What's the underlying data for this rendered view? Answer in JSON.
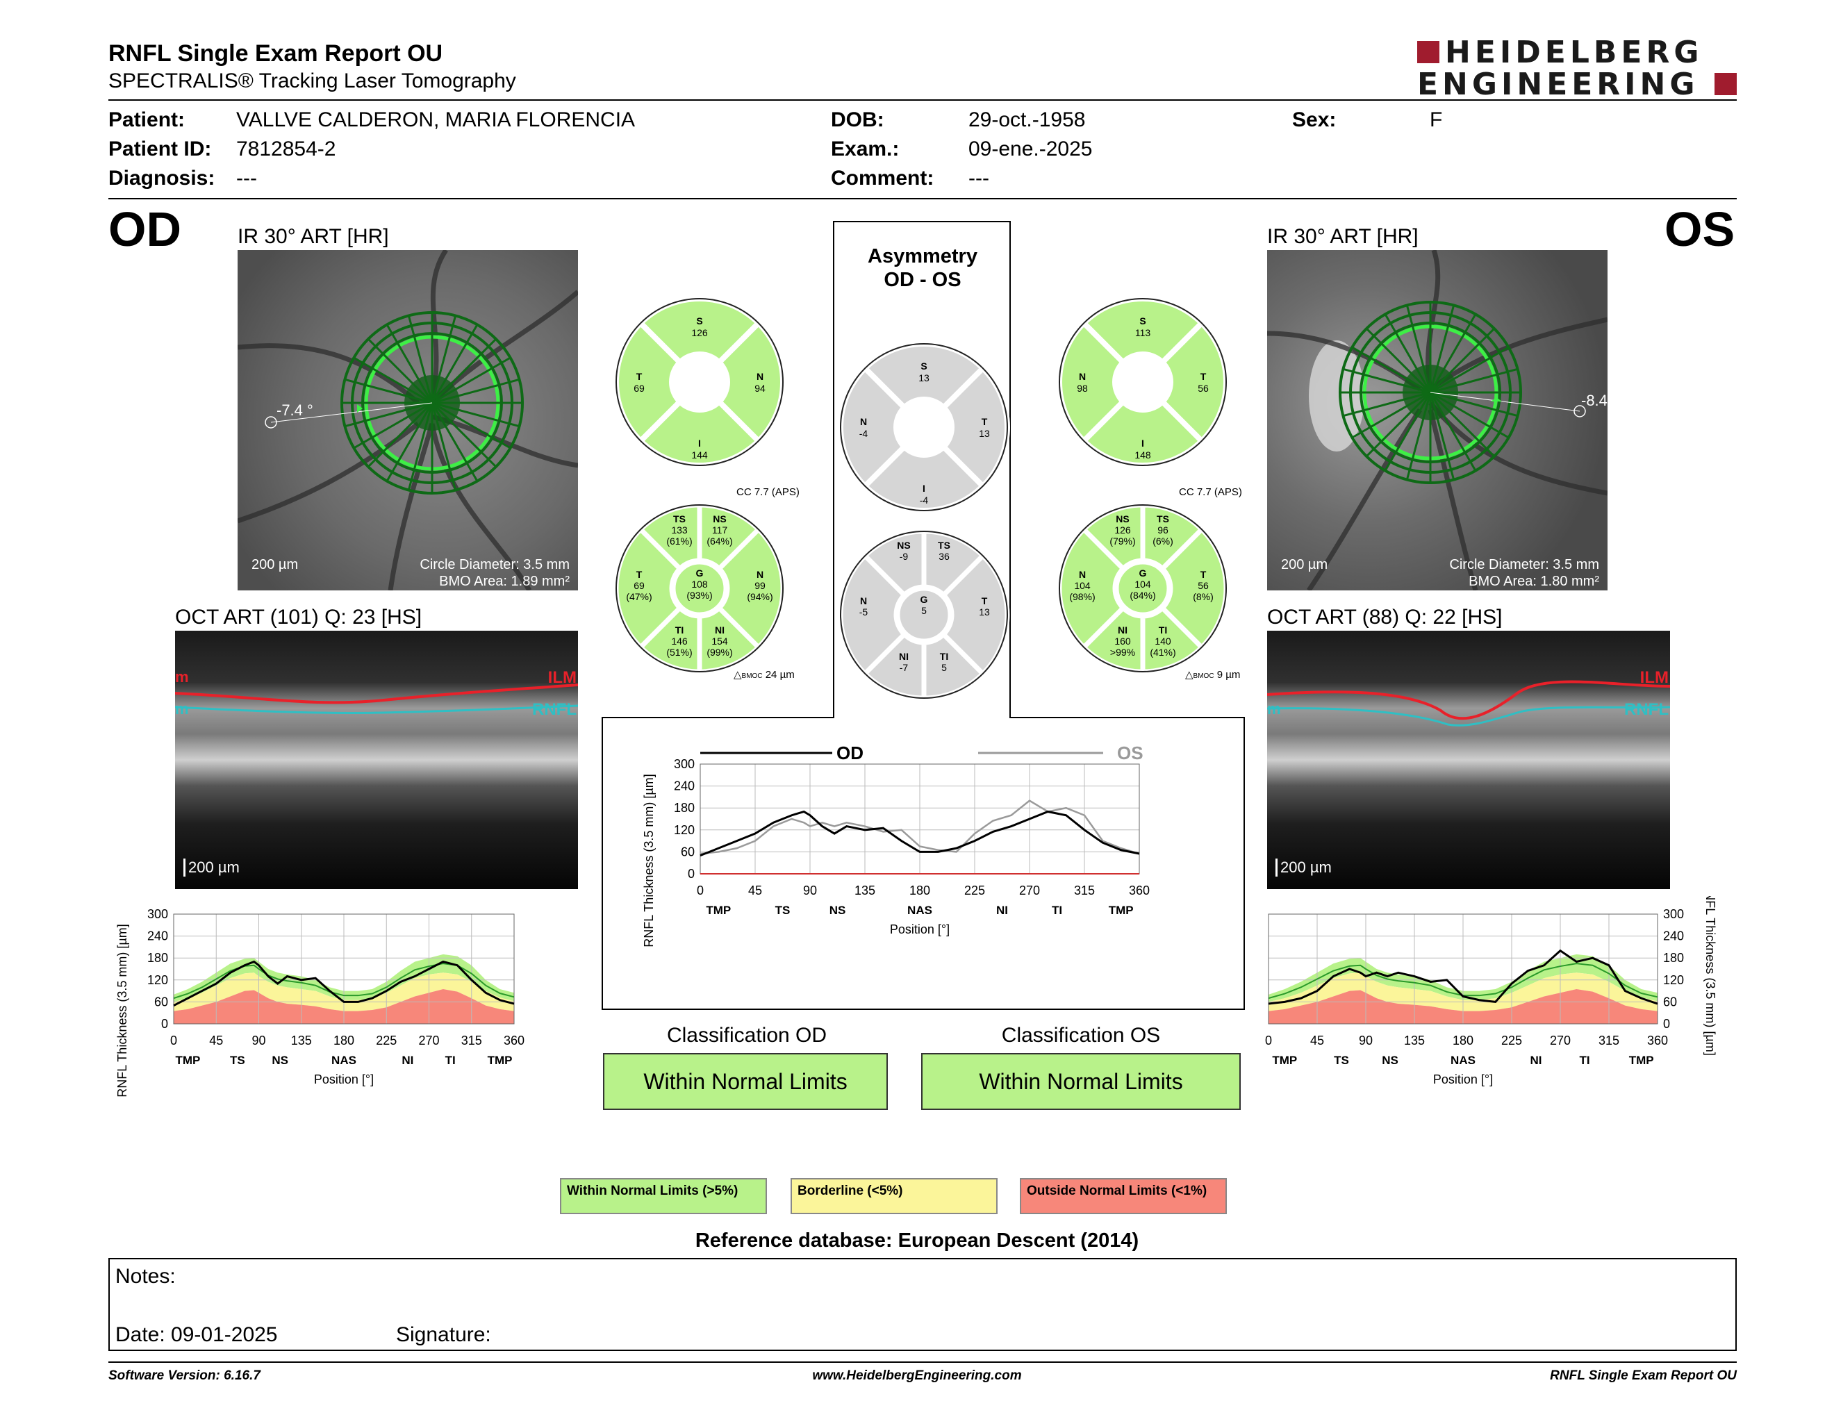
{
  "header": {
    "title": "RNFL Single Exam Report OU",
    "subtitle": "SPECTRALIS® Tracking Laser Tomography",
    "logo_line1": "HEIDELBERG",
    "logo_line2": "ENGINEERING"
  },
  "patient": {
    "patient_label": "Patient:",
    "patient_value": "VALLVE CALDERON, MARIA FLORENCIA",
    "id_label": "Patient ID:",
    "id_value": "7812854-2",
    "diag_label": "Diagnosis:",
    "diag_value": "---",
    "dob_label": "DOB:",
    "dob_value": "29-oct.-1958",
    "exam_label": "Exam.:",
    "exam_value": "09-ene.-2025",
    "comment_label": "Comment:",
    "comment_value": "---",
    "sex_label": "Sex:",
    "sex_value": "F"
  },
  "od": {
    "eye_label": "OD",
    "ir_title": "IR 30° ART [HR]",
    "angle": "-7.4 °",
    "scale": "200 µm",
    "circle_diameter": "Circle Diameter: 3.5 mm",
    "bmo_area": "BMO Area: 1.89 mm²",
    "oct_title": "OCT ART (101) Q: 23 [HS]",
    "oct_scale": "200 µm",
    "ilm_label": "ILM",
    "ilm_left": "m",
    "rnfl_label": "RNFL",
    "rnfl_left": "m",
    "quadrants": {
      "S": "126",
      "T": "69",
      "N": "94",
      "I": "144"
    },
    "sectors": {
      "TS": {
        "label": "TS",
        "value": "133",
        "pct": "(61%)"
      },
      "NS": {
        "label": "NS",
        "value": "117",
        "pct": "(64%)"
      },
      "T": {
        "label": "T",
        "value": "69",
        "pct": "(47%)"
      },
      "G": {
        "label": "G",
        "value": "108",
        "pct": "(93%)"
      },
      "N": {
        "label": "N",
        "value": "99",
        "pct": "(94%)"
      },
      "TI": {
        "label": "TI",
        "value": "146",
        "pct": "(51%)"
      },
      "NI": {
        "label": "NI",
        "value": "154",
        "pct": "(99%)"
      }
    },
    "cc": "CC 7.7 (APS)",
    "bmoc": "24 µm",
    "classification_title": "Classification OD",
    "classification": "Within Normal Limits"
  },
  "os": {
    "eye_label": "OS",
    "ir_title": "IR 30° ART [HR]",
    "angle": "-8.4",
    "scale": "200 µm",
    "circle_diameter": "Circle Diameter: 3.5 mm",
    "bmo_area": "BMO Area: 1.80 mm²",
    "oct_title": "OCT ART (88) Q: 22 [HS]",
    "oct_scale": "200 µm",
    "ilm_label": "ILM",
    "ilm_left": "m",
    "rnfl_label": "RNFL",
    "rnfl_left": "m",
    "quadrants": {
      "S": "113",
      "N": "98",
      "T": "56",
      "I": "148"
    },
    "sectors": {
      "NS": {
        "label": "NS",
        "value": "126",
        "pct": "(79%)"
      },
      "TS": {
        "label": "TS",
        "value": "96",
        "pct": "(6%)"
      },
      "N": {
        "label": "N",
        "value": "104",
        "pct": "(98%)"
      },
      "G": {
        "label": "G",
        "value": "104",
        "pct": "(84%)"
      },
      "T": {
        "label": "T",
        "value": "56",
        "pct": "(8%)"
      },
      "NI": {
        "label": "NI",
        "value": "160",
        "pct": ">99%"
      },
      "TI": {
        "label": "TI",
        "value": "140",
        "pct": "(41%)"
      }
    },
    "cc": "CC 7.7 (APS)",
    "bmoc": "9 µm",
    "classification_title": "Classification OS",
    "classification": "Within Normal Limits"
  },
  "bmoc_prefix": "BMOC",
  "asymmetry": {
    "title1": "Asymmetry",
    "title2": "OD - OS",
    "quadrants": {
      "S": "13",
      "N": "-4",
      "T": "13",
      "I": "-4"
    },
    "sectors": {
      "NS": {
        "label": "NS",
        "value": "-9"
      },
      "TS": {
        "label": "TS",
        "value": "36"
      },
      "N": {
        "label": "N",
        "value": "-5"
      },
      "G": {
        "label": "G",
        "value": "5"
      },
      "T": {
        "label": "T",
        "value": "13"
      },
      "NI": {
        "label": "NI",
        "value": "-7"
      },
      "TI": {
        "label": "TI",
        "value": "5"
      }
    }
  },
  "legend": {
    "wnl": "Within Normal Limits (>5%)",
    "bl": "Borderline (<5%)",
    "onl": "Outside Normal Limits (<1%)",
    "reference": "Reference database: European Descent (2014)"
  },
  "notes": {
    "notes_label": "Notes:",
    "date_label": "Date: 09-01-2025",
    "signature_label": "Signature:"
  },
  "footer": {
    "version": "Software Version: 6.16.7",
    "url": "www.HeidelbergEngineering.com",
    "report": "RNFL Single Exam Report OU"
  },
  "colors": {
    "normal": "#b8f28a",
    "borderline": "#fbf59a",
    "outside": "#f7877a",
    "asym": "#d6d6d6",
    "od_line": "#000000",
    "os_line": "#9a9a9a"
  },
  "chart_data": [
    {
      "type": "line",
      "name_hint": "od-profile",
      "ylabel": "RNFL Thickness (3.5 mm) [µm]",
      "xlabel": "Position [°]",
      "xlim": [
        0,
        360
      ],
      "ylim": [
        0,
        300
      ],
      "xticks": [
        "0",
        "45",
        "90",
        "135",
        "180",
        "225",
        "270",
        "315",
        "360"
      ],
      "yticks": [
        "0",
        "60",
        "120",
        "180",
        "240",
        "300"
      ],
      "sectors": [
        "TMP",
        "TS",
        "NS",
        "NAS",
        "NI",
        "TI",
        "TMP"
      ],
      "x": [
        0,
        15,
        30,
        45,
        60,
        75,
        85,
        90,
        100,
        110,
        120,
        135,
        150,
        165,
        180,
        195,
        210,
        225,
        240,
        255,
        270,
        285,
        300,
        315,
        330,
        345,
        360
      ],
      "series": [
        {
          "values": [
            50,
            70,
            90,
            110,
            140,
            160,
            170,
            160,
            130,
            110,
            130,
            120,
            125,
            90,
            60,
            60,
            70,
            90,
            115,
            130,
            150,
            170,
            160,
            120,
            85,
            65,
            55
          ]
        },
        {
          "values": [
            80,
            95,
            115,
            140,
            165,
            178,
            180,
            170,
            150,
            140,
            135,
            130,
            120,
            100,
            90,
            90,
            95,
            115,
            145,
            170,
            180,
            190,
            185,
            160,
            120,
            95,
            85
          ]
        },
        {
          "values": [
            60,
            70,
            85,
            105,
            125,
            138,
            140,
            130,
            115,
            105,
            100,
            95,
            90,
            75,
            65,
            65,
            70,
            85,
            105,
            125,
            135,
            140,
            135,
            115,
            90,
            72,
            62
          ]
        },
        {
          "values": [
            35,
            40,
            50,
            60,
            75,
            90,
            92,
            85,
            70,
            60,
            55,
            52,
            48,
            40,
            35,
            35,
            38,
            45,
            60,
            75,
            85,
            95,
            88,
            70,
            50,
            40,
            35
          ]
        }
      ]
    },
    {
      "type": "line",
      "name_hint": "os-profile",
      "ylabel": "RNFL Thickness (3.5 mm) [µm]",
      "xlabel": "Position [°]",
      "xlim": [
        0,
        360
      ],
      "ylim": [
        0,
        300
      ],
      "xticks": [
        "0",
        "45",
        "90",
        "135",
        "180",
        "225",
        "270",
        "315",
        "360"
      ],
      "yticks": [
        "0",
        "60",
        "120",
        "180",
        "240",
        "300"
      ],
      "sectors": [
        "TMP",
        "TS",
        "NS",
        "NAS",
        "NI",
        "TI",
        "TMP"
      ],
      "x": [
        0,
        15,
        30,
        45,
        60,
        75,
        85,
        90,
        100,
        110,
        120,
        135,
        150,
        165,
        180,
        195,
        210,
        225,
        240,
        255,
        270,
        285,
        300,
        315,
        330,
        345,
        360
      ],
      "series": [
        {
          "values": [
            55,
            60,
            70,
            90,
            130,
            150,
            140,
            130,
            140,
            130,
            140,
            130,
            115,
            120,
            75,
            65,
            60,
            110,
            145,
            160,
            200,
            170,
            180,
            160,
            90,
            70,
            55
          ]
        },
        {
          "values": [
            80,
            95,
            115,
            140,
            165,
            178,
            180,
            170,
            150,
            140,
            135,
            130,
            120,
            100,
            90,
            90,
            95,
            115,
            145,
            170,
            180,
            190,
            185,
            160,
            120,
            95,
            85
          ]
        },
        {
          "values": [
            60,
            70,
            85,
            105,
            125,
            138,
            140,
            130,
            115,
            105,
            100,
            95,
            90,
            75,
            65,
            65,
            70,
            85,
            105,
            125,
            135,
            140,
            135,
            115,
            90,
            72,
            62
          ]
        },
        {
          "values": [
            35,
            40,
            50,
            60,
            75,
            90,
            92,
            85,
            70,
            60,
            55,
            52,
            48,
            40,
            35,
            35,
            38,
            45,
            60,
            75,
            85,
            95,
            88,
            70,
            50,
            40,
            35
          ]
        }
      ]
    },
    {
      "type": "line",
      "name_hint": "asymmetry-overlay",
      "ylabel": "RNFL Thickness (3.5 mm) [µm]",
      "xlabel": "Position [°]",
      "xlim": [
        0,
        360
      ],
      "ylim": [
        0,
        300
      ],
      "xticks": [
        "0",
        "45",
        "90",
        "135",
        "180",
        "225",
        "270",
        "315",
        "360"
      ],
      "yticks": [
        "0",
        "60",
        "120",
        "180",
        "240",
        "300"
      ],
      "sectors": [
        "TMP",
        "TS",
        "NS",
        "NAS",
        "NI",
        "TI",
        "TMP"
      ],
      "legend": [
        "OD",
        "OS"
      ],
      "x": [
        0,
        15,
        30,
        45,
        60,
        75,
        85,
        90,
        100,
        110,
        120,
        135,
        150,
        165,
        180,
        195,
        210,
        225,
        240,
        255,
        270,
        285,
        300,
        315,
        330,
        345,
        360
      ],
      "series": [
        {
          "name": "OD",
          "values": [
            50,
            70,
            90,
            110,
            140,
            160,
            170,
            160,
            130,
            110,
            130,
            120,
            125,
            90,
            60,
            60,
            70,
            90,
            115,
            130,
            150,
            170,
            160,
            120,
            85,
            65,
            55
          ]
        },
        {
          "name": "OS",
          "values": [
            55,
            60,
            70,
            90,
            130,
            150,
            140,
            130,
            140,
            130,
            140,
            130,
            115,
            120,
            75,
            65,
            60,
            110,
            145,
            160,
            200,
            170,
            180,
            160,
            90,
            70,
            55
          ]
        }
      ]
    }
  ]
}
